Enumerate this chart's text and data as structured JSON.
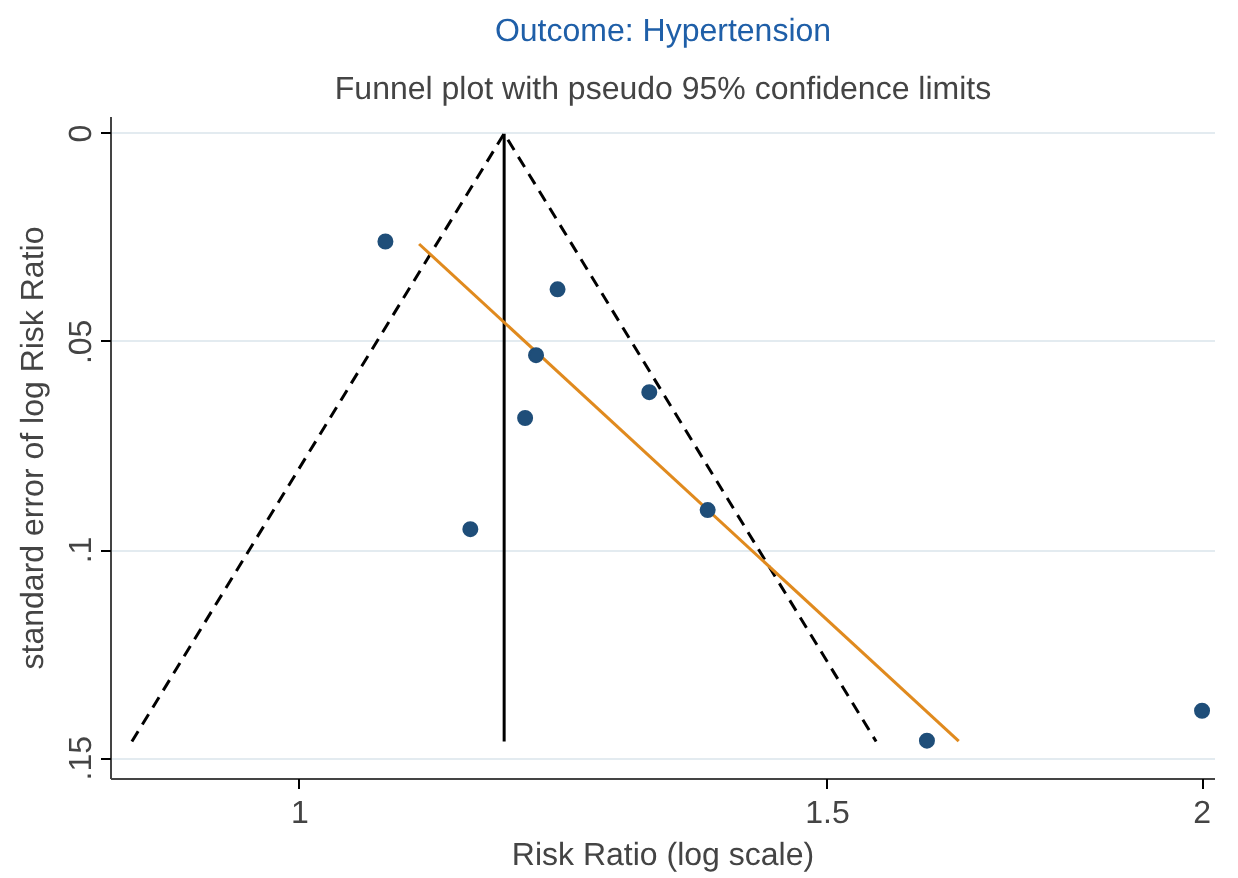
{
  "chart_data": {
    "type": "scatter",
    "title": "Outcome: Hypertension",
    "subtitle": "Funnel plot with pseudo 95% confidence limits",
    "xlabel": "Risk Ratio (log scale)",
    "ylabel": "standard error of log Risk Ratio",
    "log": "x",
    "grid": "y",
    "xlim": [
      0.865,
      2.02
    ],
    "ylim": [
      0.155,
      -0.004
    ],
    "xticks": [
      1,
      1.5,
      2
    ],
    "yticks": [
      0,
      {
        "value": 0.05,
        "label": ".05"
      },
      {
        "value": 0.1,
        "label": ".1"
      },
      {
        "value": 0.15,
        "label": ".15"
      }
    ],
    "series": [
      {
        "type": "line",
        "color": "#000000",
        "line_style": "dashed",
        "marker": "none",
        "x": [
          0.879,
          1.17,
          1.557
        ],
        "values": [
          0.146,
          0,
          0.146
        ]
      },
      {
        "type": "line",
        "color": "#000000",
        "line_style": "solid",
        "marker": "none",
        "x": [
          1.17,
          1.17
        ],
        "values": [
          0,
          0.146
        ]
      },
      {
        "type": "line",
        "color": "#e08a1e",
        "line_style": "solid",
        "marker": "none",
        "x": [
          1.096,
          1.659
        ],
        "values": [
          0.0265,
          0.1459
        ]
      },
      {
        "color": "#1f4e79",
        "marker": "circle",
        "x": [
          1.068,
          1.219,
          1.199,
          1.189,
          1.14,
          1.308,
          1.368,
          1.619,
          2.0
        ],
        "values": [
          0.0259,
          0.0374,
          0.0532,
          0.0683,
          0.095,
          0.0621,
          0.0904,
          0.1458,
          0.1386
        ]
      }
    ]
  }
}
